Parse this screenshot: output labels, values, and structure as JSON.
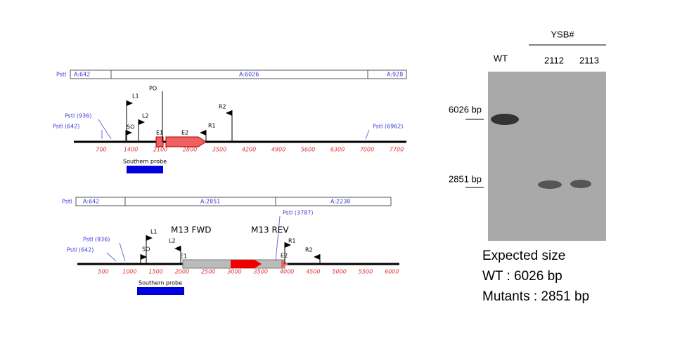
{
  "top_map": {
    "fragments": [
      "PstI",
      "A:642",
      "A:6026",
      "A:928"
    ],
    "scale": [
      700,
      1400,
      2100,
      2800,
      3500,
      4200,
      4900,
      5600,
      6300,
      7000,
      7700
    ],
    "sites": [
      "PstI (936)",
      "PstI (642)",
      "PstI (6962)"
    ],
    "markers": [
      "L1",
      "PO",
      "L2",
      "SO",
      "E1",
      "E2",
      "R2",
      "R1"
    ],
    "probe": "Southern probe"
  },
  "bottom_map": {
    "fragments": [
      "PstI",
      "A:642",
      "A:2851",
      "A:2238"
    ],
    "scale": [
      500,
      1000,
      1500,
      2000,
      2500,
      3000,
      3500,
      4000,
      4500,
      5000,
      5500,
      6000
    ],
    "sites": [
      "PstI (936)",
      "PstI (642)",
      "PstI (3787)"
    ],
    "markers": [
      "L1",
      "M13 FWD",
      "M13 REV",
      "L2",
      "SO",
      "E1",
      "E2",
      "R1",
      "R2"
    ],
    "probe": "Southern probe"
  },
  "gel": {
    "group": "YSB#",
    "lanes": [
      "WT",
      "2112",
      "2113"
    ],
    "sizes": [
      "6026 bp",
      "2851 bp"
    ]
  },
  "expected": {
    "title": "Expected size",
    "lines": [
      "WT : 6026 bp",
      "Mutants : 2851 bp"
    ]
  }
}
